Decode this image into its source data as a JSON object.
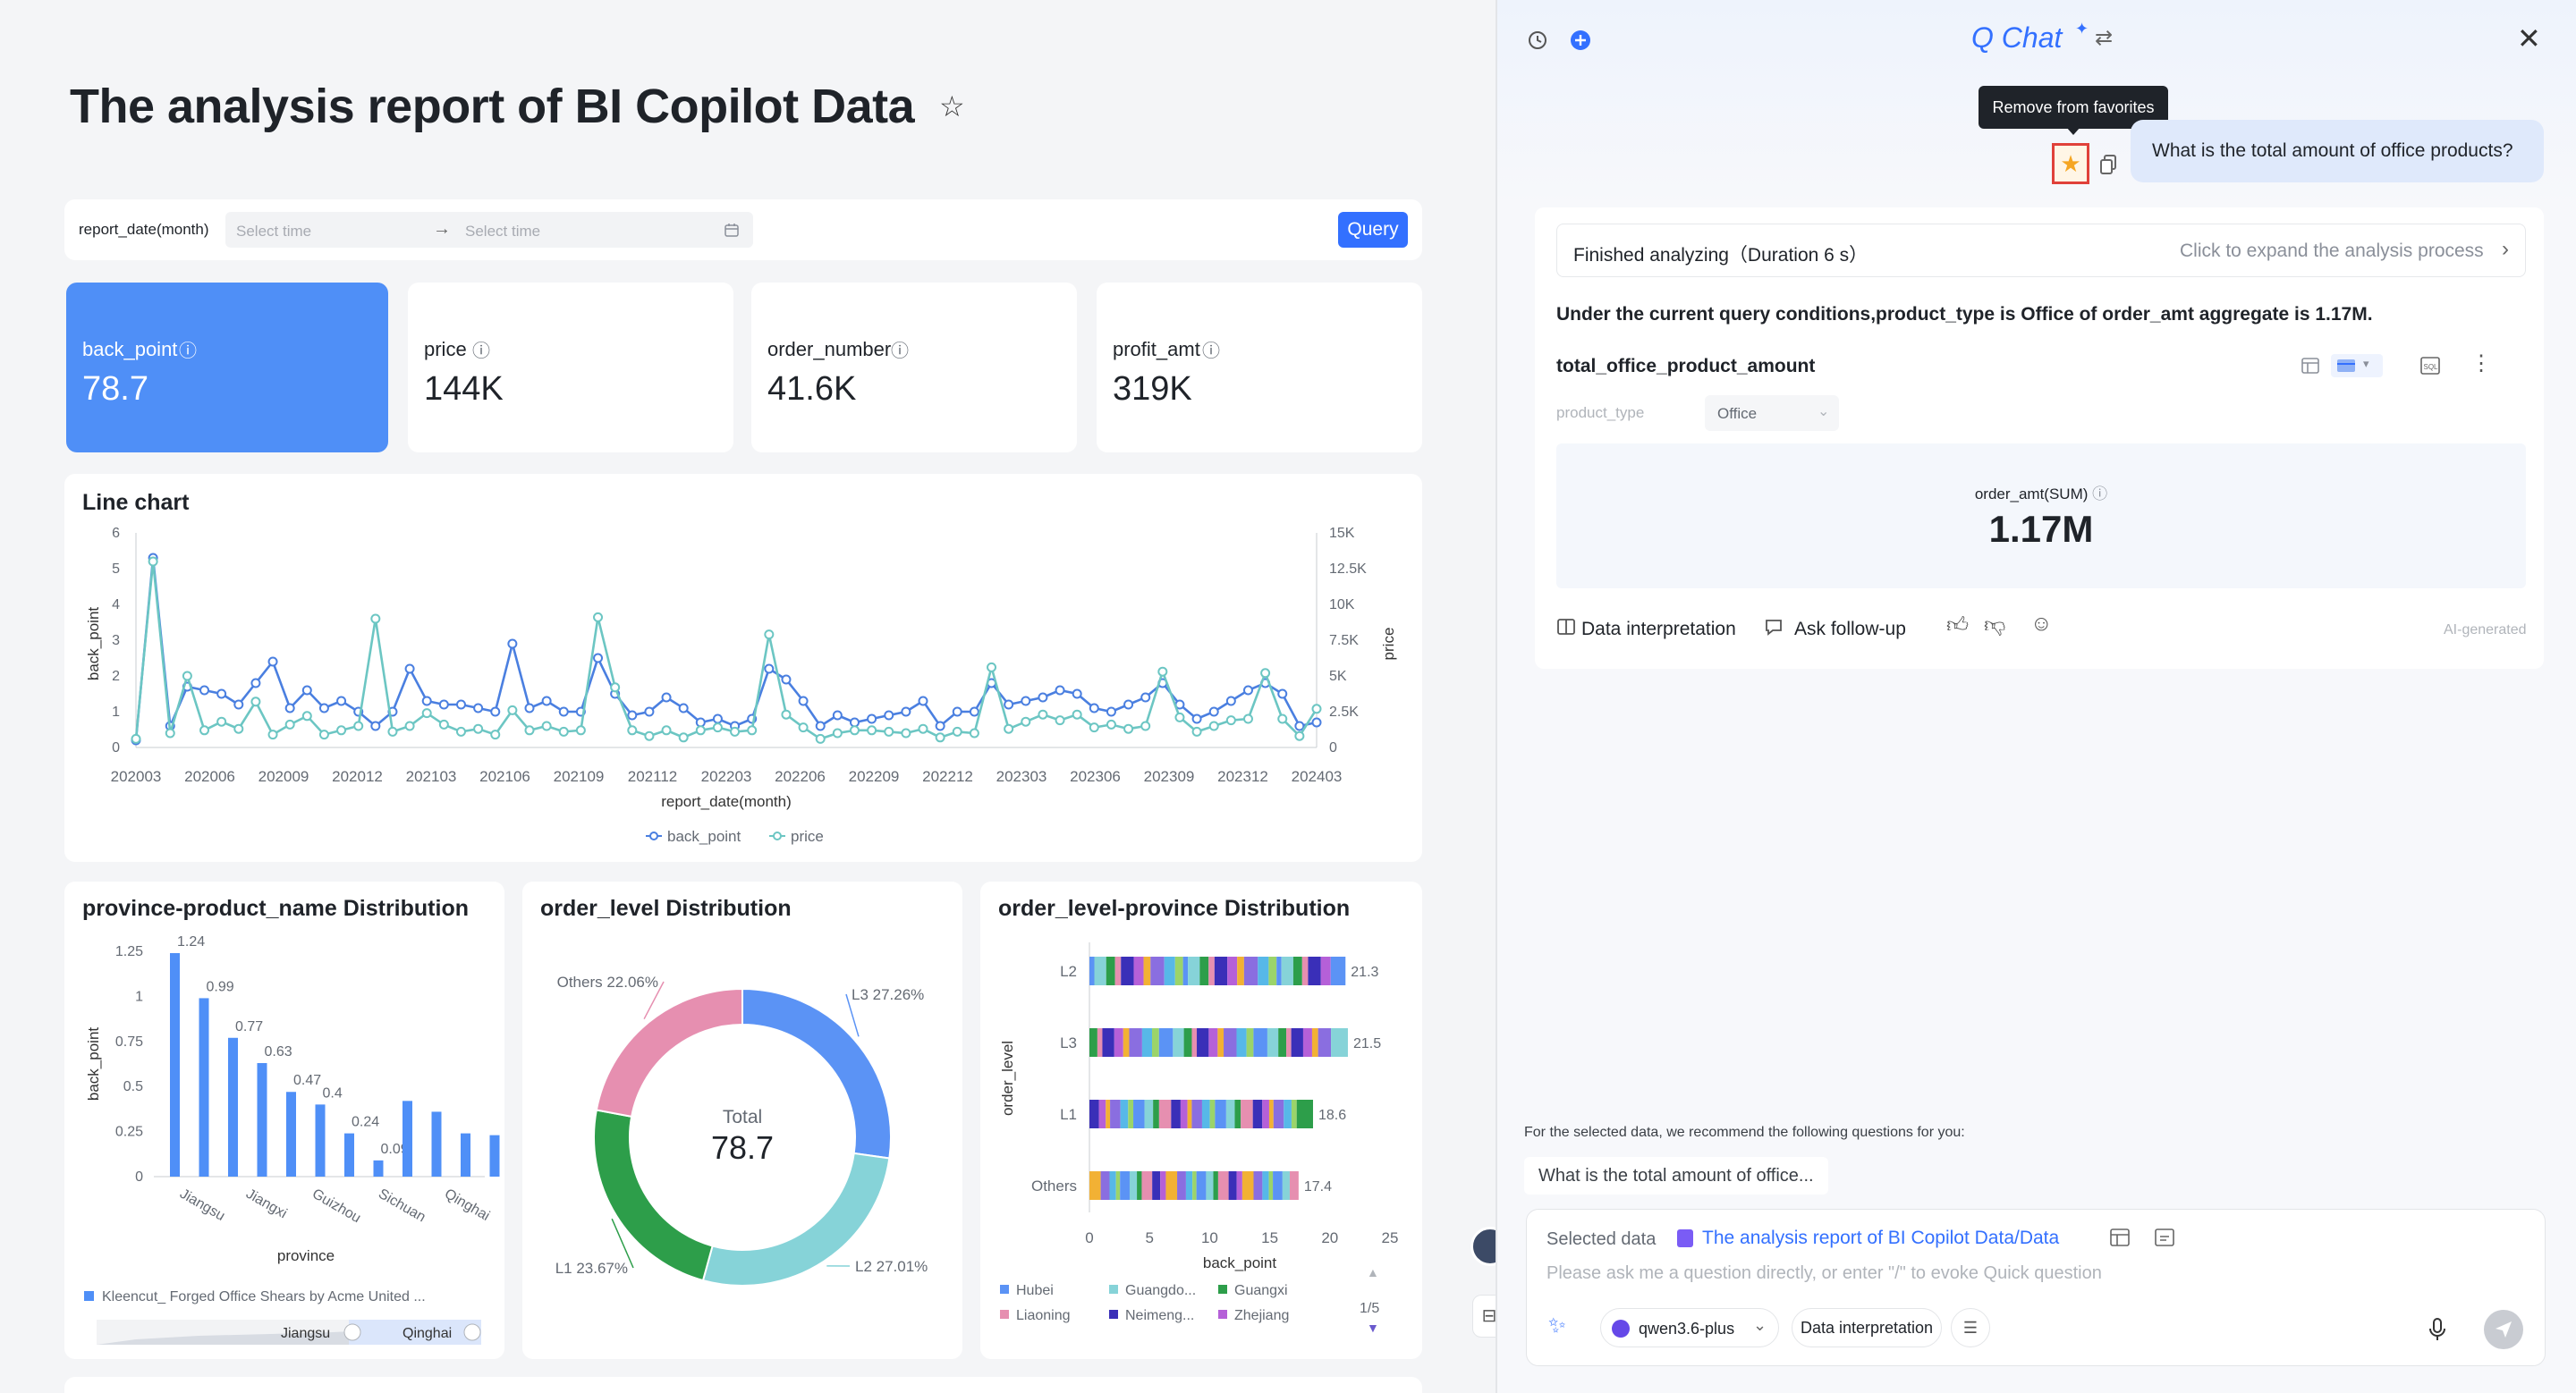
{
  "report": {
    "title": "The analysis report of BI Copilot Data",
    "filter": {
      "label": "report_date(month)",
      "start_placeholder": "Select time",
      "end_placeholder": "Select time",
      "query_label": "Query"
    },
    "kpis": [
      {
        "label": "back_point",
        "value": "78.7"
      },
      {
        "label": "price",
        "value": "144K"
      },
      {
        "label": "order_number",
        "value": "41.6K"
      },
      {
        "label": "profit_amt",
        "value": "319K"
      }
    ]
  },
  "chart_data": [
    {
      "type": "line",
      "title": "Line chart",
      "xlabel": "report_date(month)",
      "ylabel": "back_point",
      "y2label": "price",
      "x_ticks": [
        "202003",
        "202006",
        "202009",
        "202012",
        "202103",
        "202106",
        "202109",
        "202112",
        "202203",
        "202206",
        "202209",
        "202212",
        "202303",
        "202306",
        "202309",
        "202312",
        "202403"
      ],
      "y_ticks": [
        "0",
        "1",
        "2",
        "3",
        "4",
        "5",
        "6"
      ],
      "y2_ticks": [
        "0",
        "2.5K",
        "5K",
        "7.5K",
        "10K",
        "12.5K",
        "15K"
      ],
      "ylim": [
        0,
        6
      ],
      "y2lim": [
        0,
        15000
      ],
      "legend_position": "bottom",
      "series": [
        {
          "name": "back_point",
          "axis": "left",
          "color": "#4a7fe0",
          "values": [
            0.2,
            5.3,
            0.6,
            1.7,
            1.6,
            1.5,
            1.2,
            1.8,
            2.4,
            1.1,
            1.6,
            1.1,
            1.3,
            1.0,
            0.6,
            1.0,
            2.2,
            1.3,
            1.2,
            1.2,
            1.1,
            1.0,
            2.9,
            1.1,
            1.3,
            1.0,
            1.0,
            2.5,
            1.5,
            0.9,
            1.0,
            1.4,
            1.1,
            0.7,
            0.8,
            0.6,
            0.8,
            2.2,
            1.9,
            1.3,
            0.6,
            0.9,
            0.7,
            0.8,
            0.9,
            1.0,
            1.3,
            0.6,
            1.0,
            1.0,
            1.8,
            1.2,
            1.3,
            1.4,
            1.6,
            1.5,
            1.1,
            1.0,
            1.2,
            1.4,
            1.8,
            1.2,
            0.8,
            1.0,
            1.3,
            1.6,
            1.8,
            1.5,
            0.6,
            0.7
          ]
        },
        {
          "name": "price",
          "axis": "right",
          "color": "#6cc6c3",
          "values": [
            600,
            13000,
            1000,
            5000,
            1200,
            1800,
            1300,
            3200,
            900,
            1600,
            2200,
            900,
            1200,
            1500,
            9000,
            1100,
            1500,
            2400,
            1600,
            1100,
            1300,
            900,
            2600,
            1200,
            1500,
            1100,
            1200,
            9100,
            4200,
            1200,
            800,
            1200,
            700,
            1200,
            1400,
            1100,
            1200,
            7900,
            2300,
            1400,
            600,
            1000,
            1200,
            1200,
            1100,
            1000,
            1300,
            700,
            1100,
            1000,
            5600,
            1300,
            1800,
            2300,
            1900,
            2300,
            1400,
            1600,
            1300,
            1500,
            5300,
            2100,
            1100,
            1500,
            1900,
            2000,
            5200,
            2000,
            800,
            2700
          ]
        }
      ]
    },
    {
      "type": "bar",
      "title": "province-product_name Distribution",
      "xlabel": "province",
      "ylabel": "back_point",
      "y_ticks": [
        "0",
        "0.25",
        "0.5",
        "0.75",
        "1",
        "1.25"
      ],
      "ylim": [
        0,
        1.25
      ],
      "x_ticks": [
        "Jiangsu",
        "Jiangxi",
        "Guizhou",
        "Sichuan",
        "Qinghai"
      ],
      "values": [
        1.24,
        0.99,
        0.77,
        0.63,
        0.47,
        0.4,
        0.24,
        0.09
      ],
      "value_labels": [
        "1.24",
        "0.99",
        "0.77",
        "0.63",
        "0.47",
        "0.4",
        "0.24",
        "0.09"
      ],
      "extra_values": [
        0.42,
        0.36,
        0.24,
        0.23,
        0.2
      ],
      "legend": "Kleencut_ Forged Office Shears by Acme United ...",
      "slider": {
        "start_label": "Jiangsu",
        "end_label": "Qinghai"
      },
      "color": "#4f8ff7"
    },
    {
      "type": "pie",
      "title": "order_level Distribution",
      "center_label": "Total",
      "center_value": "78.7",
      "slices": [
        {
          "label": "L3 27.26%",
          "value": 27.26,
          "color": "#5b93f5"
        },
        {
          "label": "L2 27.01%",
          "value": 27.01,
          "color": "#86d3d8"
        },
        {
          "label": "L1 23.67%",
          "value": 23.67,
          "color": "#2d9e4a"
        },
        {
          "label": "Others 22.06%",
          "value": 22.06,
          "color": "#e68fb0"
        }
      ]
    },
    {
      "type": "bar",
      "orientation": "horizontal",
      "stacked": true,
      "title": "order_level-province Distribution",
      "xlabel": "back_point",
      "ylabel": "order_level",
      "x_ticks": [
        "0",
        "5",
        "10",
        "15",
        "20",
        "25"
      ],
      "xlim": [
        0,
        25
      ],
      "categories": [
        "L2",
        "L3",
        "L1",
        "Others"
      ],
      "totals": [
        21.3,
        21.5,
        18.6,
        17.4
      ],
      "total_labels": [
        "21.3",
        "21.5",
        "18.6",
        "17.4"
      ],
      "legend": [
        {
          "name": "Hubei",
          "color": "#5b93f5"
        },
        {
          "name": "Guangdo...",
          "color": "#86d3d8"
        },
        {
          "name": "Guangxi",
          "color": "#2d9e4a"
        },
        {
          "name": "Liaoning",
          "color": "#e68fb0"
        },
        {
          "name": "Neimeng...",
          "color": "#3a2fb8"
        },
        {
          "name": "Zhejiang",
          "color": "#b560d8"
        }
      ],
      "legend_page": "1/5"
    }
  ],
  "chat": {
    "title": "Q Chat",
    "tooltip": "Remove from favorites",
    "user_question": "What is the total amount of office products?",
    "status": "Finished analyzing（Duration 6 s）",
    "expand_label": "Click to expand the analysis process",
    "answer": "Under the current query conditions,product_type is Office of order_amt aggregate is 1.17M.",
    "result_title": "total_office_product_amount",
    "filter_label": "product_type",
    "filter_value": "Office",
    "metric_label": "order_amt(SUM)",
    "metric_value": "1.17M",
    "actions": {
      "interpret": "Data interpretation",
      "follow_up": "Ask follow-up",
      "ai_tag": "AI-generated"
    },
    "recommend_title": "For the selected data, we recommend the following questions for you:",
    "recommend_item": "What is the total amount of office...",
    "selected_data_label": "Selected data",
    "selected_data_value": "The analysis report of BI Copilot Data/Data",
    "input_placeholder": "Please ask me a question directly, or enter \"/\" to evoke Quick question",
    "model": "qwen3.6-plus",
    "mode": "Data interpretation",
    "favorite_color": "#f5a623",
    "accent": "#3370ff"
  }
}
